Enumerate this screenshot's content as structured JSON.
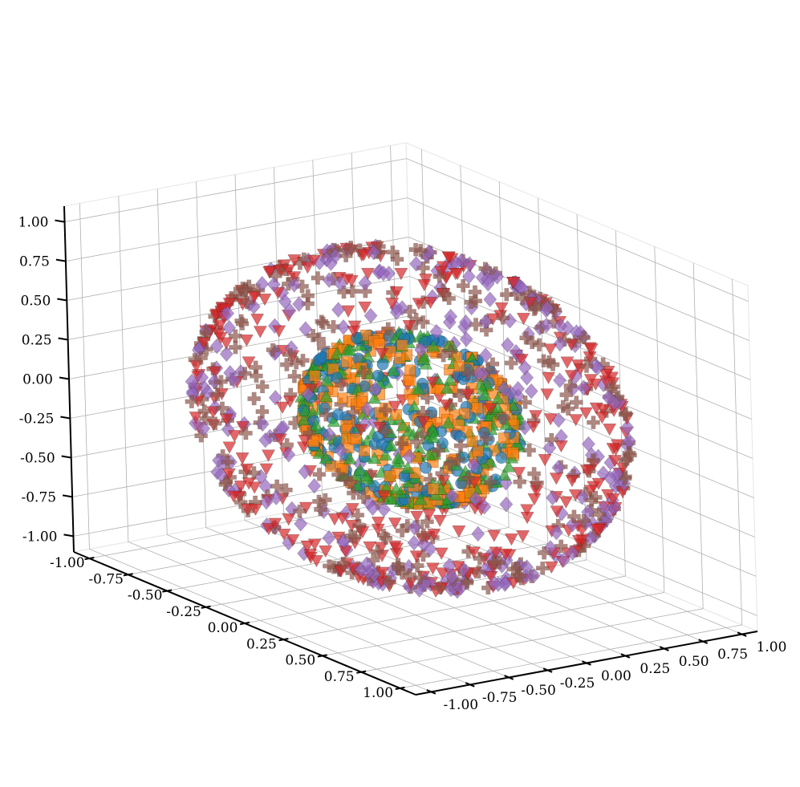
{
  "chart_data": {
    "type": "scatter",
    "projection": "3d",
    "title": "",
    "xlabel": "",
    "ylabel": "",
    "zlabel": "",
    "xlim": [
      -1.1,
      1.1
    ],
    "ylim": [
      -1.1,
      1.1
    ],
    "zlim": [
      -1.1,
      1.1
    ],
    "grid": true,
    "legend": "none",
    "x_ticks": [
      "-1.00",
      "-0.75",
      "-0.50",
      "-0.25",
      "0.00",
      "0.25",
      "0.50",
      "0.75",
      "1.00"
    ],
    "y_ticks": [
      "-1.00",
      "-0.75",
      "-0.50",
      "-0.25",
      "0.00",
      "0.25",
      "0.50",
      "0.75",
      "1.00"
    ],
    "z_ticks": [
      "-1.00",
      "-0.75",
      "-0.50",
      "-0.25",
      "0.00",
      "0.25",
      "0.50",
      "0.75",
      "1.00"
    ],
    "x_tick_values": [
      -1,
      -0.75,
      -0.5,
      -0.25,
      0,
      0.25,
      0.5,
      0.75,
      1
    ],
    "y_tick_values": [
      -1,
      -0.75,
      -0.5,
      -0.25,
      0,
      0.25,
      0.5,
      0.75,
      1
    ],
    "z_tick_values": [
      -1,
      -0.75,
      -0.5,
      -0.25,
      0,
      0.25,
      0.5,
      0.75,
      1
    ],
    "series": [
      {
        "marker": "circle",
        "color": "#1f77b4",
        "shell_radius": 0.5,
        "count": 180
      },
      {
        "marker": "square",
        "color": "#ff7f0e",
        "shell_radius": 0.5,
        "count": 220
      },
      {
        "marker": "triangle-up",
        "color": "#2ca02c",
        "shell_radius": 0.5,
        "count": 240
      },
      {
        "marker": "triangle-down",
        "color": "#d62728",
        "shell_radius": 1.0,
        "count": 330
      },
      {
        "marker": "diamond",
        "color": "#9467bd",
        "shell_radius": 1.0,
        "count": 300
      },
      {
        "marker": "plus",
        "color": "#8c564b",
        "shell_radius": 1.0,
        "count": 320
      }
    ]
  }
}
